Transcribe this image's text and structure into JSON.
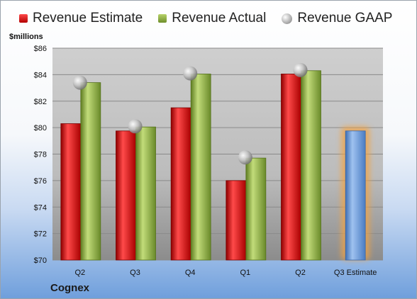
{
  "legend": {
    "estimate": "Revenue Estimate",
    "actual": "Revenue Actual",
    "gaap": "Revenue GAAP"
  },
  "unit_label": "$millions",
  "company": "Cognex",
  "chart_data": {
    "type": "bar",
    "categories": [
      "Q2",
      "Q3",
      "Q4",
      "Q1",
      "Q2",
      "Q3 Estimate"
    ],
    "series": [
      {
        "name": "Revenue Estimate",
        "values": [
          80.3,
          79.75,
          81.5,
          76.0,
          84.05,
          79.75
        ]
      },
      {
        "name": "Revenue Actual",
        "values": [
          83.4,
          80.05,
          84.05,
          77.7,
          84.3,
          null
        ]
      },
      {
        "name": "Revenue GAAP",
        "values": [
          83.4,
          80.1,
          84.1,
          77.75,
          84.35,
          null
        ]
      }
    ],
    "ylim": [
      70,
      86
    ],
    "yticks": [
      "$70",
      "$72",
      "$74",
      "$76",
      "$78",
      "$80",
      "$82",
      "$84",
      "$86"
    ],
    "grid": true,
    "legend_position": "top",
    "colors": {
      "estimate": "#d42020",
      "actual": "#8fae3c",
      "gaap": "#bdbdbd",
      "future_estimate": "#6f9fdc",
      "highlight": "#f4a340",
      "plot_background": "#c7c7c7"
    }
  }
}
